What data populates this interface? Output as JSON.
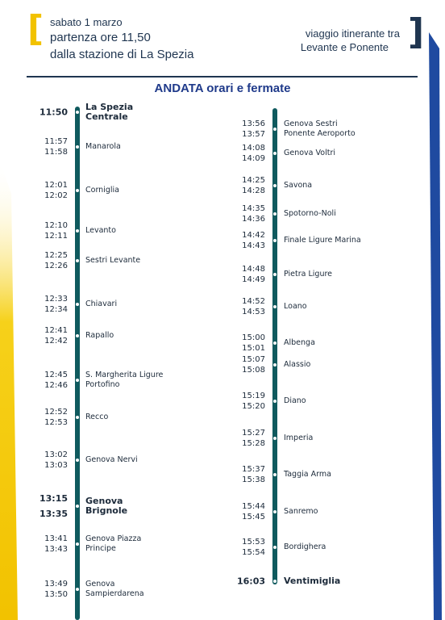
{
  "header": {
    "date": "sabato 1 marzo",
    "departure": "partenza ore 11,50",
    "station": "dalla stazione di La Spezia",
    "right_line1": "viaggio itinerante tra",
    "right_line2": "Levante e Ponente"
  },
  "title": "ANDATA orari e fermate",
  "left_stops": [
    {
      "times": [
        "11:50"
      ],
      "name": "La Spezia Centrale",
      "bold": true
    },
    {
      "times": [
        "11:57",
        "11:58"
      ],
      "name": "Manarola"
    },
    {
      "times": [
        "12:01",
        "12:02"
      ],
      "name": "Corniglia"
    },
    {
      "times": [
        "12:10",
        "12:11"
      ],
      "name": "Levanto"
    },
    {
      "times": [
        "12:25",
        "12:26"
      ],
      "name": "Sestri Levante"
    },
    {
      "times": [
        "12:33",
        "12:34"
      ],
      "name": "Chiavari"
    },
    {
      "times": [
        "12:41",
        "12:42"
      ],
      "name": "Rapallo"
    },
    {
      "times": [
        "12:45",
        "12:46"
      ],
      "name": "S. Margherita Ligure Portofino"
    },
    {
      "times": [
        "12:52",
        "12:53"
      ],
      "name": "Recco"
    },
    {
      "times": [
        "13:02",
        "13:03"
      ],
      "name": "Genova Nervi"
    },
    {
      "times": [
        "13:15",
        "13:35"
      ],
      "name": "Genova Brignole",
      "bold": true
    },
    {
      "times": [
        "13:41",
        "13:43"
      ],
      "name": "Genova Piazza Principe"
    },
    {
      "times": [
        "13:49",
        "13:50"
      ],
      "name": "Genova Sampierdarena"
    }
  ],
  "right_stops": [
    {
      "times": [
        "13:56",
        "13:57"
      ],
      "name": "Genova Sestri Ponente Aeroporto"
    },
    {
      "times": [
        "14:08",
        "14:09"
      ],
      "name": "Genova Voltri"
    },
    {
      "times": [
        "14:25",
        "14:28"
      ],
      "name": "Savona"
    },
    {
      "times": [
        "14:35",
        "14:36"
      ],
      "name": "Spotorno-Noli"
    },
    {
      "times": [
        "14:42",
        "14:43"
      ],
      "name": "Finale Ligure Marina"
    },
    {
      "times": [
        "14:48",
        "14:49"
      ],
      "name": "Pietra Ligure"
    },
    {
      "times": [
        "14:52",
        "14:53"
      ],
      "name": "Loano"
    },
    {
      "times": [
        "15:00",
        "15:01"
      ],
      "name": "Albenga"
    },
    {
      "times": [
        "15:07",
        "15:08"
      ],
      "name": "Alassio"
    },
    {
      "times": [
        "15:19",
        "15:20"
      ],
      "name": "Diano"
    },
    {
      "times": [
        "15:27",
        "15:28"
      ],
      "name": "Imperia"
    },
    {
      "times": [
        "15:37",
        "15:38"
      ],
      "name": "Taggia Arma"
    },
    {
      "times": [
        "15:44",
        "15:45"
      ],
      "name": "Sanremo"
    },
    {
      "times": [
        "15:53",
        "15:54"
      ],
      "name": "Bordighera"
    },
    {
      "times": [
        "16:03"
      ],
      "name": "Ventimiglia",
      "bold": true
    }
  ]
}
